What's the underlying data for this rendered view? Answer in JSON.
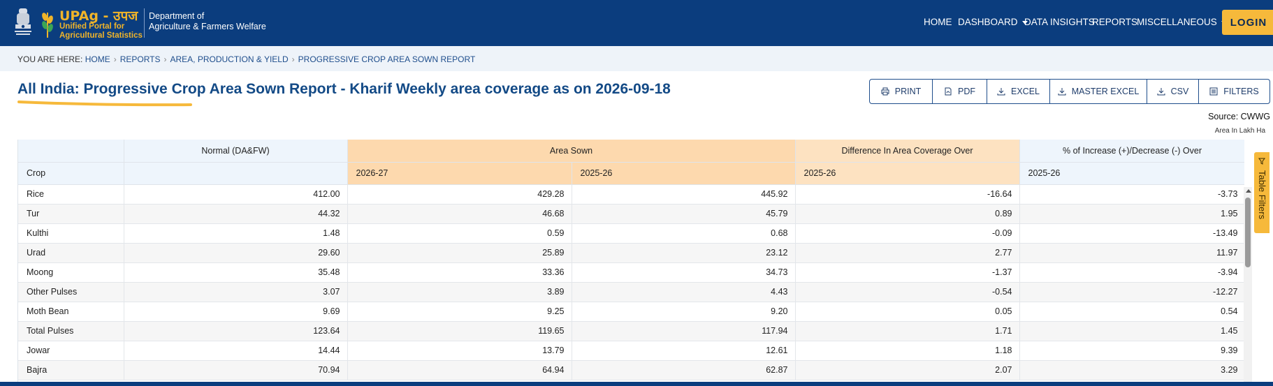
{
  "header": {
    "brand_title": "UPAg - उपज",
    "brand_sub_line1": "Unified Portal for",
    "brand_sub_line2": "Agricultural Statistics",
    "dept_line1": "Department of",
    "dept_line2": "Agriculture & Farmers Welfare",
    "nav": {
      "home": "HOME",
      "dashboard": "DASHBOARD",
      "data_insights": "DATA INSIGHTS",
      "reports": "REPORTS",
      "misc": "MISCELLANEOUS",
      "login": "LOGIN"
    },
    "colors": {
      "bar": "#0b3d7e",
      "accent": "#f6b93b"
    }
  },
  "breadcrumb": {
    "prefix": "YOU ARE HERE:",
    "items": [
      "HOME",
      "REPORTS",
      "AREA, PRODUCTION & YIELD",
      "PROGRESSIVE CROP AREA SOWN REPORT"
    ]
  },
  "page": {
    "title": "All India: Progressive Crop Area Sown Report - Kharif Weekly area coverage as on 2026-09-18",
    "source": "Source: CWWG",
    "unit": "Area In Lakh Ha"
  },
  "actions": [
    {
      "label": "PRINT",
      "icon": "printer-icon"
    },
    {
      "label": "PDF",
      "icon": "pdf-file-icon"
    },
    {
      "label": "EXCEL",
      "icon": "download-icon"
    },
    {
      "label": "MASTER EXCEL",
      "icon": "download-icon"
    },
    {
      "label": "CSV",
      "icon": "download-icon"
    },
    {
      "label": "FILTERS",
      "icon": "filter-list-icon"
    }
  ],
  "table": {
    "group_headers": [
      "",
      "Normal (DA&FW)",
      "Area Sown",
      "Difference In Area Coverage Over",
      "% of Increase (+)/Decrease (-) Over"
    ],
    "sub_headers": [
      "Crop",
      "",
      "2026-27",
      "2025-26",
      "2025-26",
      "2025-26"
    ],
    "rows": [
      [
        "Rice",
        "412.00",
        "429.28",
        "445.92",
        "-16.64",
        "-3.73"
      ],
      [
        "Tur",
        "44.32",
        "46.68",
        "45.79",
        "0.89",
        "1.95"
      ],
      [
        "Kulthi",
        "1.48",
        "0.59",
        "0.68",
        "-0.09",
        "-13.49"
      ],
      [
        "Urad",
        "29.60",
        "25.89",
        "23.12",
        "2.77",
        "11.97"
      ],
      [
        "Moong",
        "35.48",
        "33.36",
        "34.73",
        "-1.37",
        "-3.94"
      ],
      [
        "Other Pulses",
        "3.07",
        "3.89",
        "4.43",
        "-0.54",
        "-12.27"
      ],
      [
        "Moth Bean",
        "9.69",
        "9.25",
        "9.20",
        "0.05",
        "0.54"
      ],
      [
        "Total Pulses",
        "123.64",
        "119.65",
        "117.94",
        "1.71",
        "1.45"
      ],
      [
        "Jowar",
        "14.44",
        "13.79",
        "12.61",
        "1.18",
        "9.39"
      ],
      [
        "Bajra",
        "70.94",
        "64.94",
        "62.87",
        "2.07",
        "3.29"
      ]
    ]
  },
  "table_filters_label": "Table Filters"
}
